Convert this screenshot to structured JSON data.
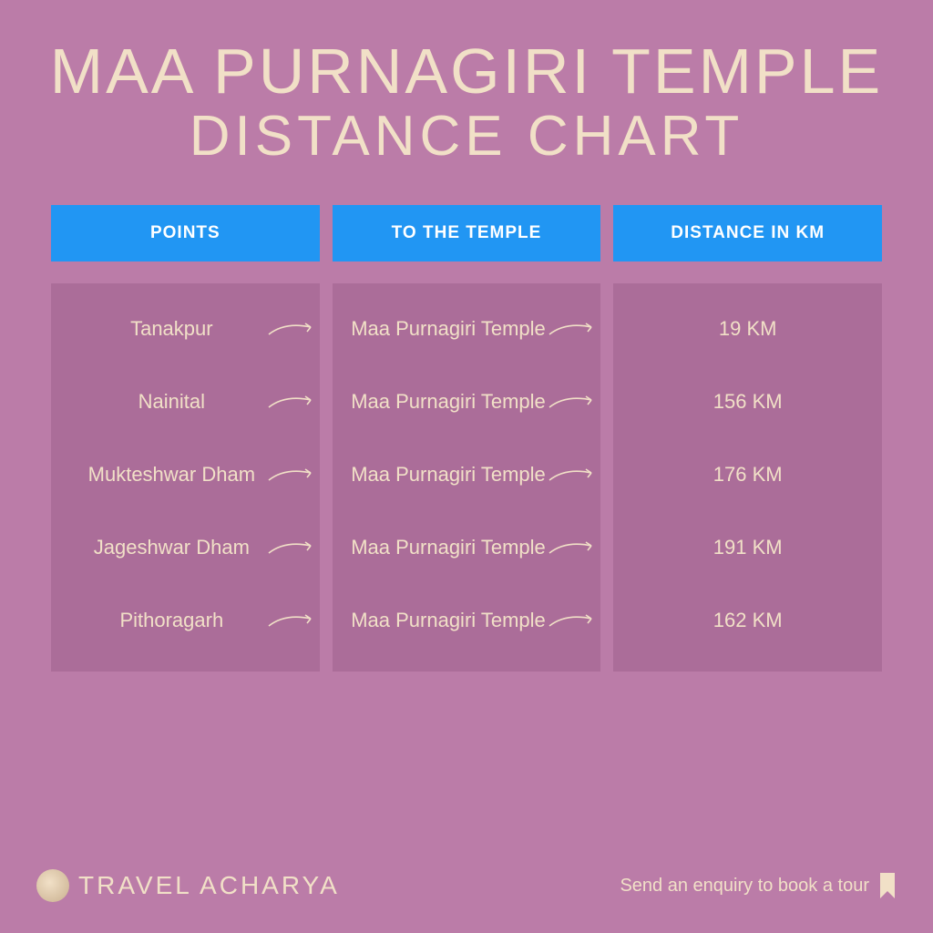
{
  "colors": {
    "background": "#bb7ca8",
    "panel": "#ab6d99",
    "header": "#2196f3",
    "text_light": "#f1e0c7",
    "header_text": "#ffffff"
  },
  "title": {
    "line1": "MAA PURNAGIRI TEMPLE",
    "line2": "DISTANCE CHART"
  },
  "table": {
    "headers": [
      "POINTS",
      "TO THE TEMPLE",
      "DISTANCE IN KM"
    ],
    "rows": [
      {
        "point": "Tanakpur",
        "to": "Maa Purnagiri Temple",
        "distance": "19 KM"
      },
      {
        "point": "Nainital",
        "to": "Maa Purnagiri Temple",
        "distance": "156 KM"
      },
      {
        "point": "Mukteshwar Dham",
        "to": "Maa Purnagiri Temple",
        "distance": "176 KM"
      },
      {
        "point": "Jageshwar Dham",
        "to": "Maa Purnagiri Temple",
        "distance": "191 KM"
      },
      {
        "point": "Pithoragarh",
        "to": "Maa Purnagiri Temple",
        "distance": "162 KM"
      }
    ]
  },
  "footer": {
    "brand": "TRAVEL ACHARYA",
    "cta": "Send an enquiry to book a tour"
  }
}
